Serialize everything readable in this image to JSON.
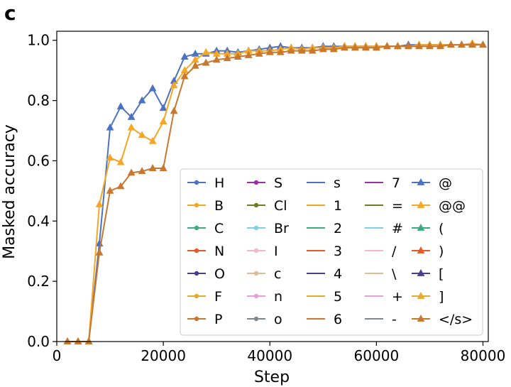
{
  "panel_label": "c",
  "chart_data": {
    "type": "line",
    "title": "",
    "xlabel": "Step",
    "ylabel": "Masked accuracy",
    "xlim": [
      0,
      81000
    ],
    "ylim": [
      0.0,
      1.03
    ],
    "xticks": [
      0,
      20000,
      40000,
      60000,
      80000
    ],
    "yticks": [
      0.0,
      0.2,
      0.4,
      0.6,
      0.8,
      1.0
    ],
    "xtick_labels": [
      "0",
      "20000",
      "40000",
      "60000",
      "80000"
    ],
    "ytick_labels": [
      "0.0",
      "0.2",
      "0.4",
      "0.6",
      "0.8",
      "1.0"
    ],
    "grid": false,
    "legend_position": "lower-right",
    "legend": [
      {
        "name": "H",
        "color": "#4C72C4",
        "marker": "circle"
      },
      {
        "name": "B",
        "color": "#F5A623",
        "marker": "circle"
      },
      {
        "name": "C",
        "color": "#3CAB7F",
        "marker": "circle"
      },
      {
        "name": "N",
        "color": "#E8592A",
        "marker": "circle"
      },
      {
        "name": "O",
        "color": "#4B3F8C",
        "marker": "circle"
      },
      {
        "name": "F",
        "color": "#E6AA2E",
        "marker": "circle"
      },
      {
        "name": "P",
        "color": "#C8772E",
        "marker": "circle"
      },
      {
        "name": "S",
        "color": "#9A2FA8",
        "marker": "circle"
      },
      {
        "name": "Cl",
        "color": "#6B7D1E",
        "marker": "circle"
      },
      {
        "name": "Br",
        "color": "#7FD0E6",
        "marker": "circle"
      },
      {
        "name": "I",
        "color": "#F4B6C8",
        "marker": "circle"
      },
      {
        "name": "c",
        "color": "#D7BE94",
        "marker": "circle"
      },
      {
        "name": "n",
        "color": "#E5A0D8",
        "marker": "circle"
      },
      {
        "name": "o",
        "color": "#7D8792",
        "marker": "circle"
      },
      {
        "name": "s",
        "color": "#4C72C4",
        "marker": "line"
      },
      {
        "name": "1",
        "color": "#F5A623",
        "marker": "line"
      },
      {
        "name": "2",
        "color": "#3CAB7F",
        "marker": "line"
      },
      {
        "name": "3",
        "color": "#E8592A",
        "marker": "line"
      },
      {
        "name": "4",
        "color": "#4B3F8C",
        "marker": "line"
      },
      {
        "name": "5",
        "color": "#E6AA2E",
        "marker": "line"
      },
      {
        "name": "6",
        "color": "#C8772E",
        "marker": "line"
      },
      {
        "name": "7",
        "color": "#9A2FA8",
        "marker": "line"
      },
      {
        "name": "=",
        "color": "#6B7D1E",
        "marker": "line"
      },
      {
        "name": "#",
        "color": "#7FD0E6",
        "marker": "line"
      },
      {
        "name": "/",
        "color": "#F4B6C8",
        "marker": "line"
      },
      {
        "name": "\\",
        "color": "#D7BE94",
        "marker": "line"
      },
      {
        "name": "+",
        "color": "#E5A0D8",
        "marker": "line"
      },
      {
        "name": "-",
        "color": "#7D8792",
        "marker": "line"
      },
      {
        "name": "@",
        "color": "#4C72C4",
        "marker": "triangle"
      },
      {
        "name": "@@",
        "color": "#F5A623",
        "marker": "triangle"
      },
      {
        "name": "(",
        "color": "#3CAB7F",
        "marker": "triangle"
      },
      {
        "name": ")",
        "color": "#E8592A",
        "marker": "triangle"
      },
      {
        "name": "[",
        "color": "#4B3F8C",
        "marker": "triangle"
      },
      {
        "name": "]",
        "color": "#E6AA2E",
        "marker": "triangle"
      },
      {
        "name": "</s>",
        "color": "#C8772E",
        "marker": "triangle"
      }
    ],
    "x": [
      2000,
      4000,
      6000,
      8000,
      10000,
      12000,
      14000,
      16000,
      18000,
      20000,
      22000,
      24000,
      26000,
      28000,
      30000,
      32000,
      34000,
      36000,
      38000,
      40000,
      42000,
      44000,
      46000,
      48000,
      50000,
      52000,
      54000,
      56000,
      58000,
      60000,
      62000,
      64000,
      66000,
      68000,
      70000,
      72000,
      74000,
      76000,
      78000,
      80000
    ],
    "series": [
      {
        "name": "@",
        "color": "#4C72C4",
        "values": [
          0.0,
          0.0,
          0.0,
          0.325,
          0.71,
          0.78,
          0.745,
          0.8,
          0.84,
          0.775,
          0.865,
          0.945,
          0.955,
          0.955,
          0.965,
          0.965,
          0.96,
          0.965,
          0.97,
          0.975,
          0.98,
          0.975,
          0.975,
          0.975,
          0.98,
          0.98,
          0.98,
          0.98,
          0.98,
          0.98,
          0.98,
          0.98,
          0.985,
          0.985,
          0.985,
          0.985,
          0.985,
          0.985,
          0.985,
          0.985
        ]
      },
      {
        "name": "@@",
        "color": "#F5A623",
        "values": [
          0.0,
          0.0,
          0.0,
          0.455,
          0.61,
          0.595,
          0.71,
          0.685,
          0.665,
          0.73,
          0.85,
          0.9,
          0.935,
          0.96,
          0.955,
          0.955,
          0.955,
          0.965,
          0.965,
          0.965,
          0.97,
          0.975,
          0.97,
          0.975,
          0.975,
          0.975,
          0.98,
          0.98,
          0.98,
          0.98,
          0.98,
          0.98,
          0.98,
          0.985,
          0.985,
          0.985,
          0.985,
          0.985,
          0.99,
          0.985
        ]
      },
      {
        "name": "</s>",
        "color": "#C8772E",
        "values": [
          0.0,
          0.0,
          0.0,
          0.295,
          0.5,
          0.515,
          0.56,
          0.565,
          0.575,
          0.575,
          0.765,
          0.88,
          0.915,
          0.925,
          0.935,
          0.94,
          0.945,
          0.95,
          0.955,
          0.96,
          0.96,
          0.965,
          0.965,
          0.965,
          0.97,
          0.97,
          0.975,
          0.975,
          0.975,
          0.975,
          0.98,
          0.98,
          0.98,
          0.98,
          0.98,
          0.98,
          0.985,
          0.985,
          0.985,
          0.985
        ]
      }
    ]
  }
}
